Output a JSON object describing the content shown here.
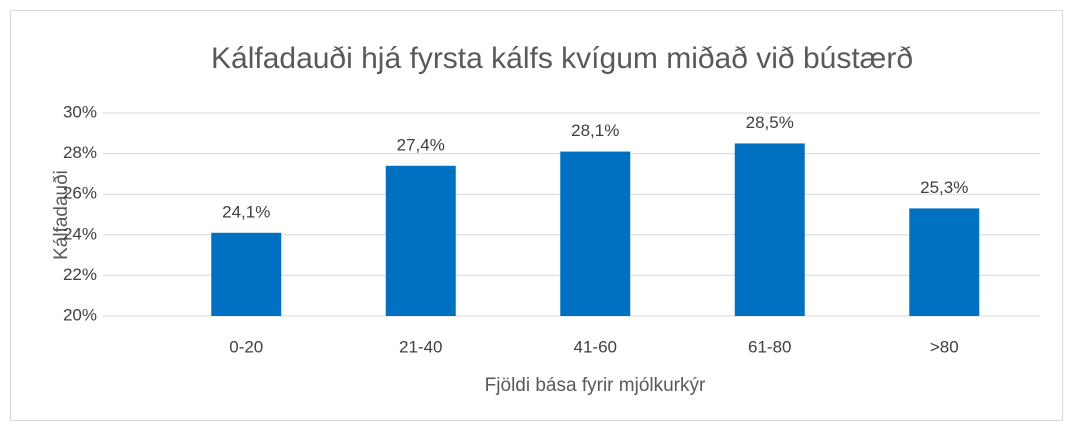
{
  "chart_data": {
    "type": "bar",
    "title": "Kálfadauði hjá fyrsta kálfs kvígum miðað við bústærð",
    "x_label": "Fjöldi bása fyrir mjólkurkýr",
    "y_label": "Kálfadauði",
    "categories": [
      "0-20",
      "21-40",
      "41-60",
      "61-80",
      ">80"
    ],
    "values": [
      24.1,
      27.4,
      28.1,
      28.5,
      25.3
    ],
    "value_labels": [
      "24,1%",
      "27,4%",
      "28,1%",
      "28,5%",
      "25,3%"
    ],
    "color": "#0070c0",
    "ylim": [
      20,
      30
    ],
    "yticks": [
      {
        "value": 20,
        "label": "20%"
      },
      {
        "value": 22,
        "label": "22%"
      },
      {
        "value": 24,
        "label": "24%"
      },
      {
        "value": 26,
        "label": "26%"
      },
      {
        "value": 28,
        "label": "28%"
      },
      {
        "value": 30,
        "label": "30%"
      }
    ],
    "grid": true
  }
}
